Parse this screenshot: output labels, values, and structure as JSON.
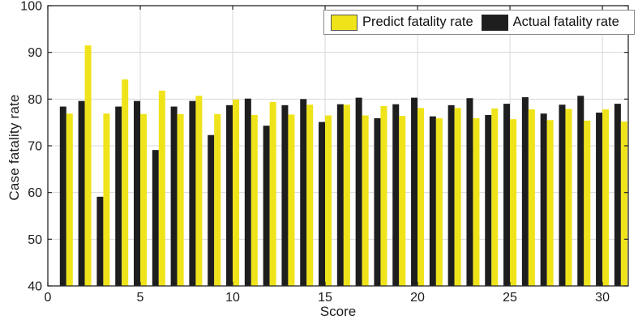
{
  "chart_data": {
    "type": "bar",
    "title": "",
    "xlabel": "Score",
    "ylabel": "Case fatality rate",
    "xlim": [
      0,
      31.4
    ],
    "ylim": [
      40,
      100
    ],
    "xticks": [
      0,
      5,
      10,
      15,
      20,
      25,
      30
    ],
    "yticks": [
      40,
      50,
      60,
      70,
      80,
      90,
      100
    ],
    "grid": true,
    "legend_position": "top-right, horizontal, inside plot",
    "categories": [
      1,
      2,
      3,
      4,
      5,
      6,
      7,
      8,
      9,
      10,
      11,
      12,
      13,
      14,
      15,
      16,
      17,
      18,
      19,
      20,
      21,
      22,
      23,
      24,
      25,
      26,
      27,
      28,
      29,
      30,
      31
    ],
    "series": [
      {
        "name": "Predict fatality rate",
        "color": "#efe31a",
        "values": [
          76.9,
          91.5,
          76.9,
          84.2,
          76.8,
          81.8,
          76.8,
          80.7,
          76.8,
          79.9,
          76.6,
          79.4,
          76.7,
          78.8,
          76.5,
          78.8,
          76.5,
          78.5,
          76.4,
          78.1,
          75.9,
          78.1,
          75.9,
          78.0,
          75.7,
          77.8,
          75.5,
          77.9,
          75.4,
          77.8,
          75.2
        ]
      },
      {
        "name": "Actual fatality rate",
        "color": "#1e1e1e",
        "values": [
          78.4,
          79.6,
          59.1,
          78.4,
          79.6,
          69.1,
          78.4,
          79.6,
          72.3,
          78.7,
          80.1,
          74.3,
          78.7,
          80.0,
          75.1,
          78.9,
          80.3,
          75.9,
          78.9,
          80.3,
          76.3,
          78.7,
          80.2,
          76.6,
          79.0,
          80.4,
          76.9,
          78.8,
          80.7,
          77.1,
          79.0
        ]
      }
    ],
    "group_layout": "Actual (black) bar on left of each pair, Predict (yellow) bar on right",
    "colors": {
      "grid": "#d8d8d8",
      "axis": "#262626",
      "tick_text": "#1a1a1a"
    }
  }
}
